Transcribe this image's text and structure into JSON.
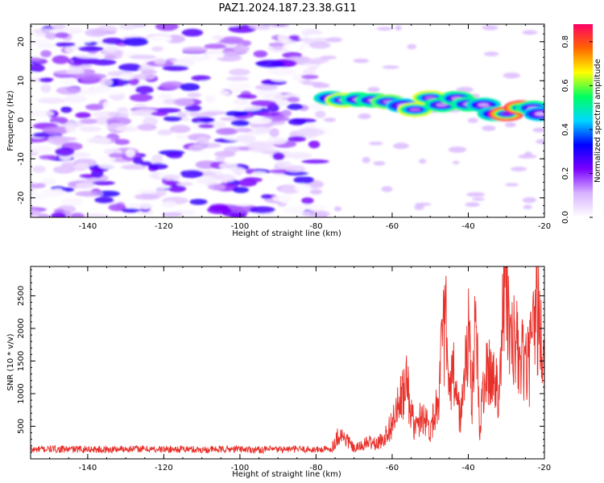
{
  "chart_data": [
    {
      "type": "heatmap",
      "title": "PAZ1.2024.187.23.38.G11",
      "xlabel": "Height of straight line (km)",
      "ylabel": "Frequency (Hz)",
      "xlim": [
        -155,
        -20
      ],
      "ylim": [
        -25,
        24.5
      ],
      "xticks": [
        "-140",
        "-120",
        "-100",
        "-80",
        "-60",
        "-40",
        "-20"
      ],
      "yticks": [
        "-20",
        "-10",
        "0",
        "10",
        "20"
      ],
      "colorbar": {
        "label": "Normalized spectral amplitude",
        "range": [
          0,
          0.88
        ],
        "ticks": [
          "0.0",
          "0.2",
          "0.4",
          "0.6",
          "0.8"
        ],
        "colormap": "gist_rainbow_reversed",
        "stops": [
          "#ffffff",
          "#d8b3ff",
          "#7b00ff",
          "#0000ff",
          "#00d8ff",
          "#00ff60",
          "#ffff00",
          "#ff6600",
          "#ff0066"
        ]
      },
      "noise_region": {
        "x_range": [
          -155,
          -78
        ],
        "y_range": [
          -25,
          24.5
        ],
        "amplitude_range": [
          0.0,
          0.3
        ]
      },
      "signal_track": [
        {
          "x": -76,
          "freq": 5.5,
          "amp": 0.5
        },
        {
          "x": -73,
          "freq": 5.0,
          "amp": 0.65
        },
        {
          "x": -69,
          "freq": 5.2,
          "amp": 0.55
        },
        {
          "x": -65,
          "freq": 5.0,
          "amp": 0.55
        },
        {
          "x": -61,
          "freq": 4.6,
          "amp": 0.6
        },
        {
          "x": -57,
          "freq": 3.6,
          "amp": 0.45
        },
        {
          "x": -54,
          "freq": 2.6,
          "amp": 0.65
        },
        {
          "x": -50,
          "freq": 5.6,
          "amp": 0.65
        },
        {
          "x": -47,
          "freq": 3.8,
          "amp": 0.55
        },
        {
          "x": -43,
          "freq": 5.5,
          "amp": 0.55
        },
        {
          "x": -40,
          "freq": 4.0,
          "amp": 0.55
        },
        {
          "x": -36,
          "freq": 3.8,
          "amp": 0.5
        },
        {
          "x": -33,
          "freq": 1.5,
          "amp": 0.5
        },
        {
          "x": -30,
          "freq": 1.5,
          "amp": 0.85
        },
        {
          "x": -26,
          "freq": 3.1,
          "amp": 0.85
        },
        {
          "x": -23,
          "freq": 3.0,
          "amp": 0.55
        },
        {
          "x": -21,
          "freq": 1.5,
          "amp": 0.45
        }
      ]
    },
    {
      "type": "line",
      "title": "",
      "xlabel": "Height of straight line (km)",
      "ylabel": "SNR (10 * v/v)",
      "xlim": [
        -155,
        -20
      ],
      "ylim": [
        0,
        2950
      ],
      "xticks": [
        "-140",
        "-120",
        "-100",
        "-80",
        "-60",
        "-40",
        "-20"
      ],
      "yticks": [
        "500",
        "1000",
        "1500",
        "2000",
        "2500"
      ],
      "color": "#e8302a",
      "series": [
        {
          "x": [
            -155,
            -150,
            -145,
            -140,
            -135,
            -130,
            -125,
            -120,
            -115,
            -110,
            -105,
            -100,
            -95,
            -90,
            -85,
            -80,
            -76,
            -74,
            -72,
            -70,
            -68,
            -66,
            -64,
            -62,
            -60,
            -58,
            -56,
            -55,
            -54,
            -52,
            -50,
            -48,
            -46,
            -45,
            -44,
            -42,
            -40,
            -39,
            -38,
            -37,
            -36,
            -34,
            -32,
            -31,
            -30,
            -29,
            -28,
            -26,
            -24,
            -23,
            -22,
            -21,
            -20
          ],
          "values": [
            140,
            150,
            145,
            150,
            140,
            155,
            150,
            145,
            150,
            140,
            145,
            150,
            140,
            145,
            150,
            140,
            150,
            380,
            300,
            150,
            200,
            260,
            220,
            330,
            550,
            850,
            1150,
            700,
            450,
            700,
            450,
            900,
            2200,
            900,
            1300,
            600,
            1900,
            900,
            2500,
            300,
            1200,
            1300,
            1100,
            2100,
            2950,
            1600,
            1800,
            1500,
            1400,
            1900,
            2350,
            1900,
            1200
          ]
        }
      ]
    }
  ]
}
